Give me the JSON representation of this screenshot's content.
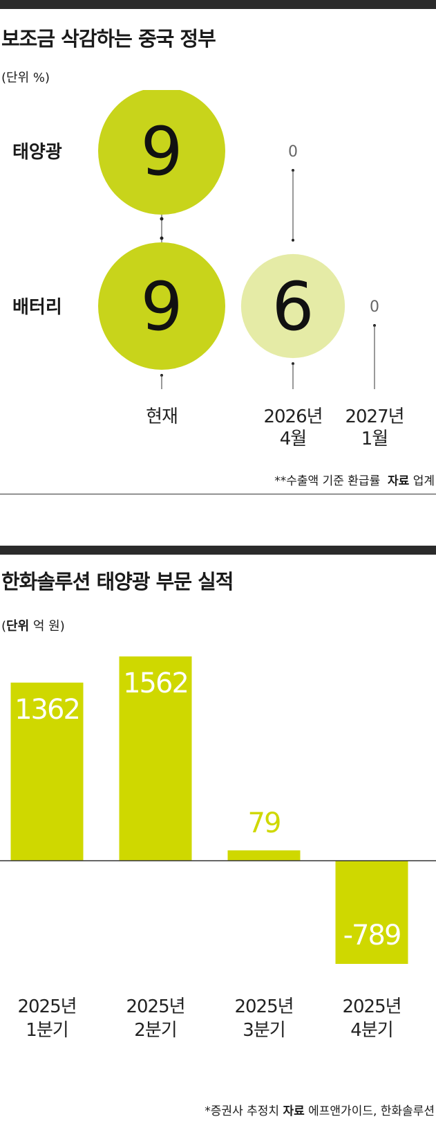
{
  "chart_data": [
    {
      "type": "bubble",
      "title": "보조금 삭감하는 중국 정부",
      "unit_prefix": "(단위 ",
      "unit_value": "%)",
      "categories": [
        "현재",
        "2026년\n4월",
        "2027년\n1월"
      ],
      "rows": [
        {
          "name": "태양광",
          "values": [
            9,
            0,
            null
          ]
        },
        {
          "name": "배터리",
          "values": [
            9,
            6,
            0
          ]
        }
      ],
      "note": "**수출액 기준 환급률",
      "source_label": "자료",
      "source": "업계",
      "colors": {
        "strong": "#c8d41b",
        "light": "#e5eba6",
        "line": "#555555"
      }
    },
    {
      "type": "bar",
      "title": "한화솔루션 태양광 부문 실적",
      "unit_prefix": "(",
      "unit_bold": "단위",
      "unit_value": " 억 원)",
      "categories": [
        "2025년\n1분기",
        "2025년\n2분기",
        "2025년\n3분기",
        "2025년\n4분기"
      ],
      "values": [
        1362,
        1562,
        79,
        -789
      ],
      "note": "*증권사 추정치",
      "source_label": "자료",
      "source": "에프앤가이드, 한화솔루션",
      "colors": {
        "bar": "#cfd800",
        "axis": "#333333"
      }
    }
  ]
}
